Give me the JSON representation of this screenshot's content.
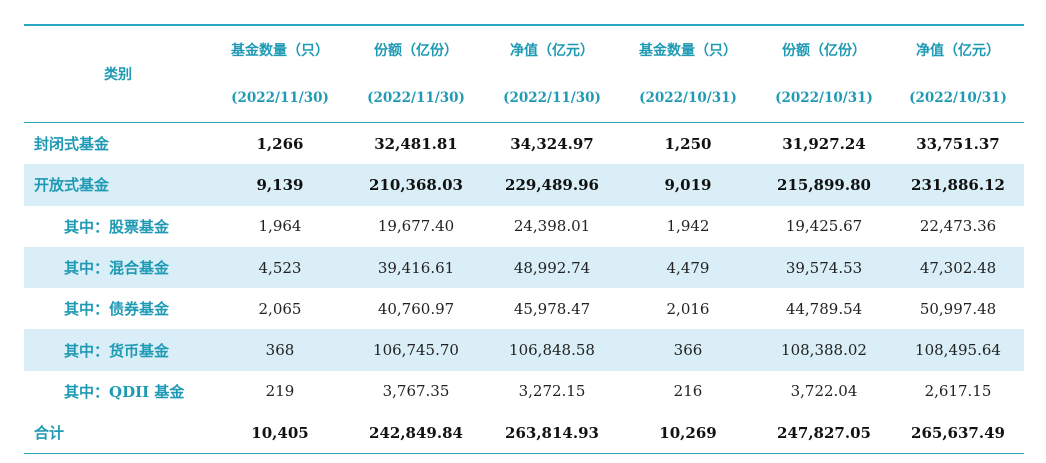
{
  "table": {
    "header": {
      "category": "类别",
      "columns": [
        {
          "title": "基金数量（只）",
          "date": "(2022/11/30)"
        },
        {
          "title": "份额（亿份）",
          "date": "(2022/11/30)"
        },
        {
          "title": "净值（亿元）",
          "date": "(2022/11/30)"
        },
        {
          "title": "基金数量（只）",
          "date": "(2022/10/31)"
        },
        {
          "title": "份额（亿份）",
          "date": "(2022/10/31)"
        },
        {
          "title": "净值（亿元）",
          "date": "(2022/10/31)"
        }
      ]
    },
    "rows": [
      {
        "label": "封闭式基金",
        "values": [
          "1,266",
          "32,481.81",
          "34,324.97",
          "1,250",
          "31,927.24",
          "33,751.37"
        ]
      },
      {
        "label": "开放式基金",
        "values": [
          "9,139",
          "210,368.03",
          "229,489.96",
          "9,019",
          "215,899.80",
          "231,886.12"
        ]
      },
      {
        "label": "其中：股票基金",
        "values": [
          "1,964",
          "19,677.40",
          "24,398.01",
          "1,942",
          "19,425.67",
          "22,473.36"
        ]
      },
      {
        "label": "其中：混合基金",
        "values": [
          "4,523",
          "39,416.61",
          "48,992.74",
          "4,479",
          "39,574.53",
          "47,302.48"
        ]
      },
      {
        "label": "其中：债券基金",
        "values": [
          "2,065",
          "40,760.97",
          "45,978.47",
          "2,016",
          "44,789.54",
          "50,997.48"
        ]
      },
      {
        "label": "其中：货币基金",
        "values": [
          "368",
          "106,745.70",
          "106,848.58",
          "366",
          "108,388.02",
          "108,495.64"
        ]
      },
      {
        "label": "其中：QDII 基金",
        "values": [
          "219",
          "3,767.35",
          "3,272.15",
          "216",
          "3,722.04",
          "2,617.15"
        ]
      },
      {
        "label": "合计",
        "values": [
          "10,405",
          "242,849.84",
          "263,814.93",
          "10,269",
          "247,827.05",
          "265,637.49"
        ]
      }
    ]
  }
}
